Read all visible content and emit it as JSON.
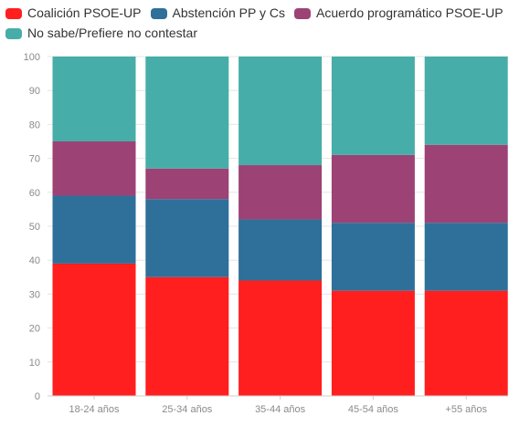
{
  "chart_data": {
    "type": "bar",
    "stacked": true,
    "categories": [
      "18-24 años",
      "25-34 años",
      "35-44 años",
      "45-54 años",
      "+55 años"
    ],
    "series": [
      {
        "name": "Coalición PSOE-UP",
        "color": "#ff1f1f",
        "values": [
          39,
          35,
          34,
          31,
          31
        ]
      },
      {
        "name": "Abstención PP y Cs",
        "color": "#2e7099",
        "values": [
          20,
          23,
          18,
          20,
          20
        ]
      },
      {
        "name": "Acuerdo programático PSOE-UP",
        "color": "#9c4275",
        "values": [
          16,
          9,
          16,
          20,
          23
        ]
      },
      {
        "name": "No sabe/Prefiere no contestar",
        "color": "#47ada8",
        "values": [
          25,
          33,
          32,
          29,
          26
        ]
      }
    ],
    "ylim": [
      0,
      100
    ],
    "yticks": [
      0,
      10,
      20,
      30,
      40,
      50,
      60,
      70,
      80,
      90,
      100
    ],
    "grid": true,
    "legend_position": "top-left"
  }
}
